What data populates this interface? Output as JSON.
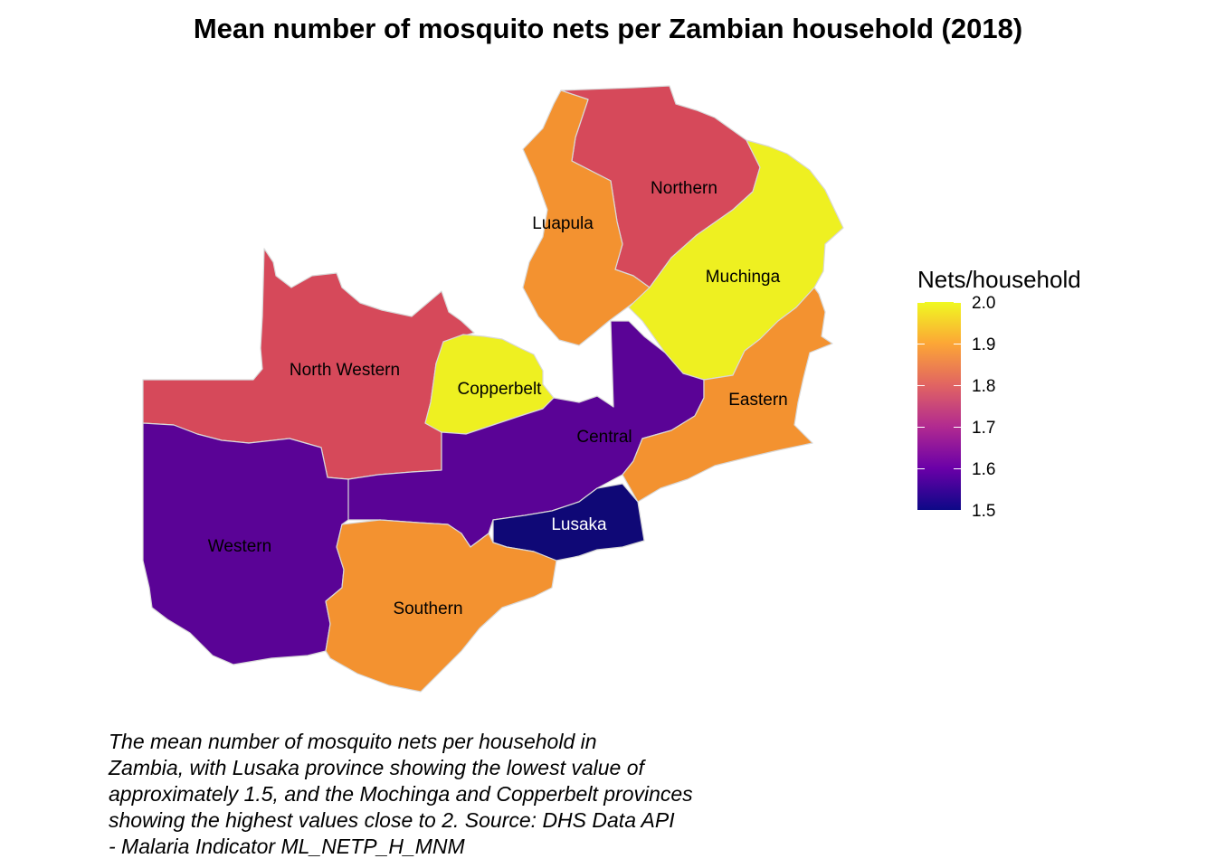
{
  "title": "Mean number of mosquito nets per Zambian household (2018)",
  "legend": {
    "title": "Nets/household",
    "ticks": [
      "2.0",
      "1.9",
      "1.8",
      "1.7",
      "1.6",
      "1.5"
    ],
    "min": 1.5,
    "max": 2.0
  },
  "provinces": [
    {
      "name": "Northern",
      "value": 1.8,
      "color": "#d6495a"
    },
    {
      "name": "Luapula",
      "value": 1.88,
      "color": "#f39230"
    },
    {
      "name": "Muchinga",
      "value": 1.98,
      "color": "#eef021"
    },
    {
      "name": "North Western",
      "value": 1.8,
      "color": "#d6495a"
    },
    {
      "name": "Copperbelt",
      "value": 1.98,
      "color": "#eef021"
    },
    {
      "name": "Central",
      "value": 1.6,
      "color": "#5a0396"
    },
    {
      "name": "Eastern",
      "value": 1.88,
      "color": "#f39230"
    },
    {
      "name": "Western",
      "value": 1.6,
      "color": "#5a0396"
    },
    {
      "name": "Lusaka",
      "value": 1.5,
      "color": "#0f0876"
    },
    {
      "name": "Southern",
      "value": 1.88,
      "color": "#f39230"
    }
  ],
  "caption": "The mean number of mosquito nets per household in\nZambia, with Lusaka province showing the lowest value of\napproximately 1.5, and the Mochinga and Copperbelt provinces\nshowing the highest values close to 2. Source: DHS Data API\n- Malaria Indicator ML_NETP_H_MNM"
}
